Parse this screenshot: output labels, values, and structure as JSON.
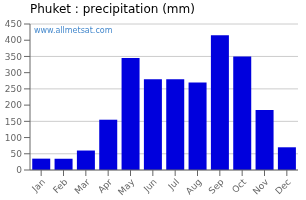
{
  "chart_data": {
    "type": "bar",
    "title": "Phuket : precipitation (mm)",
    "categories": [
      "Jan",
      "Feb",
      "Mar",
      "Apr",
      "May",
      "Jun",
      "Jul",
      "Aug",
      "Sep",
      "Oct",
      "Nov",
      "Dec"
    ],
    "values": [
      35,
      35,
      60,
      155,
      345,
      280,
      280,
      270,
      415,
      350,
      185,
      70
    ],
    "color": "#0000DD",
    "ylim": [
      0,
      450
    ],
    "yticks": [
      0,
      50,
      100,
      150,
      200,
      250,
      300,
      350,
      400,
      450
    ],
    "grid": true,
    "annotations": [
      "www.allmetsat.com"
    ]
  }
}
